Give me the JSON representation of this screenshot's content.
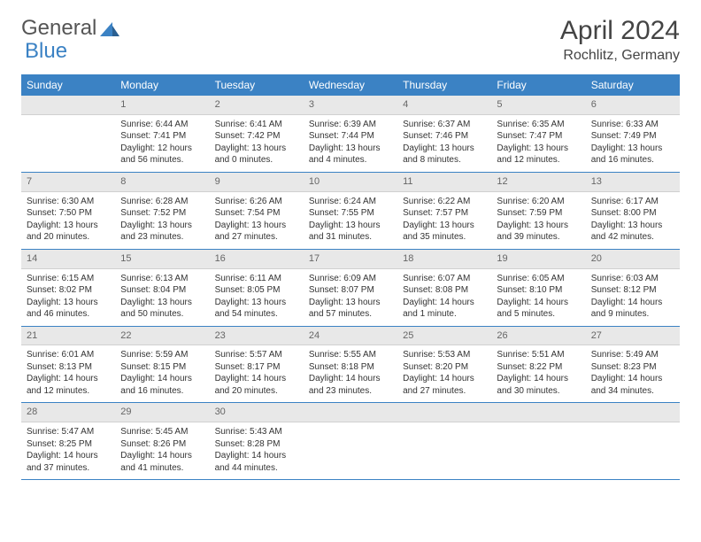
{
  "brand": {
    "part1": "General",
    "part2": "Blue"
  },
  "title": "April 2024",
  "location": "Rochlitz, Germany",
  "colors": {
    "accent": "#3b82c4",
    "header_bg": "#3b82c4",
    "header_fg": "#ffffff",
    "daynum_bg": "#e8e8e8",
    "text": "#333333"
  },
  "weekdays": [
    "Sunday",
    "Monday",
    "Tuesday",
    "Wednesday",
    "Thursday",
    "Friday",
    "Saturday"
  ],
  "weeks": [
    [
      {
        "n": "",
        "sr": "",
        "ss": "",
        "dl": ""
      },
      {
        "n": "1",
        "sr": "Sunrise: 6:44 AM",
        "ss": "Sunset: 7:41 PM",
        "dl": "Daylight: 12 hours and 56 minutes."
      },
      {
        "n": "2",
        "sr": "Sunrise: 6:41 AM",
        "ss": "Sunset: 7:42 PM",
        "dl": "Daylight: 13 hours and 0 minutes."
      },
      {
        "n": "3",
        "sr": "Sunrise: 6:39 AM",
        "ss": "Sunset: 7:44 PM",
        "dl": "Daylight: 13 hours and 4 minutes."
      },
      {
        "n": "4",
        "sr": "Sunrise: 6:37 AM",
        "ss": "Sunset: 7:46 PM",
        "dl": "Daylight: 13 hours and 8 minutes."
      },
      {
        "n": "5",
        "sr": "Sunrise: 6:35 AM",
        "ss": "Sunset: 7:47 PM",
        "dl": "Daylight: 13 hours and 12 minutes."
      },
      {
        "n": "6",
        "sr": "Sunrise: 6:33 AM",
        "ss": "Sunset: 7:49 PM",
        "dl": "Daylight: 13 hours and 16 minutes."
      }
    ],
    [
      {
        "n": "7",
        "sr": "Sunrise: 6:30 AM",
        "ss": "Sunset: 7:50 PM",
        "dl": "Daylight: 13 hours and 20 minutes."
      },
      {
        "n": "8",
        "sr": "Sunrise: 6:28 AM",
        "ss": "Sunset: 7:52 PM",
        "dl": "Daylight: 13 hours and 23 minutes."
      },
      {
        "n": "9",
        "sr": "Sunrise: 6:26 AM",
        "ss": "Sunset: 7:54 PM",
        "dl": "Daylight: 13 hours and 27 minutes."
      },
      {
        "n": "10",
        "sr": "Sunrise: 6:24 AM",
        "ss": "Sunset: 7:55 PM",
        "dl": "Daylight: 13 hours and 31 minutes."
      },
      {
        "n": "11",
        "sr": "Sunrise: 6:22 AM",
        "ss": "Sunset: 7:57 PM",
        "dl": "Daylight: 13 hours and 35 minutes."
      },
      {
        "n": "12",
        "sr": "Sunrise: 6:20 AM",
        "ss": "Sunset: 7:59 PM",
        "dl": "Daylight: 13 hours and 39 minutes."
      },
      {
        "n": "13",
        "sr": "Sunrise: 6:17 AM",
        "ss": "Sunset: 8:00 PM",
        "dl": "Daylight: 13 hours and 42 minutes."
      }
    ],
    [
      {
        "n": "14",
        "sr": "Sunrise: 6:15 AM",
        "ss": "Sunset: 8:02 PM",
        "dl": "Daylight: 13 hours and 46 minutes."
      },
      {
        "n": "15",
        "sr": "Sunrise: 6:13 AM",
        "ss": "Sunset: 8:04 PM",
        "dl": "Daylight: 13 hours and 50 minutes."
      },
      {
        "n": "16",
        "sr": "Sunrise: 6:11 AM",
        "ss": "Sunset: 8:05 PM",
        "dl": "Daylight: 13 hours and 54 minutes."
      },
      {
        "n": "17",
        "sr": "Sunrise: 6:09 AM",
        "ss": "Sunset: 8:07 PM",
        "dl": "Daylight: 13 hours and 57 minutes."
      },
      {
        "n": "18",
        "sr": "Sunrise: 6:07 AM",
        "ss": "Sunset: 8:08 PM",
        "dl": "Daylight: 14 hours and 1 minute."
      },
      {
        "n": "19",
        "sr": "Sunrise: 6:05 AM",
        "ss": "Sunset: 8:10 PM",
        "dl": "Daylight: 14 hours and 5 minutes."
      },
      {
        "n": "20",
        "sr": "Sunrise: 6:03 AM",
        "ss": "Sunset: 8:12 PM",
        "dl": "Daylight: 14 hours and 9 minutes."
      }
    ],
    [
      {
        "n": "21",
        "sr": "Sunrise: 6:01 AM",
        "ss": "Sunset: 8:13 PM",
        "dl": "Daylight: 14 hours and 12 minutes."
      },
      {
        "n": "22",
        "sr": "Sunrise: 5:59 AM",
        "ss": "Sunset: 8:15 PM",
        "dl": "Daylight: 14 hours and 16 minutes."
      },
      {
        "n": "23",
        "sr": "Sunrise: 5:57 AM",
        "ss": "Sunset: 8:17 PM",
        "dl": "Daylight: 14 hours and 20 minutes."
      },
      {
        "n": "24",
        "sr": "Sunrise: 5:55 AM",
        "ss": "Sunset: 8:18 PM",
        "dl": "Daylight: 14 hours and 23 minutes."
      },
      {
        "n": "25",
        "sr": "Sunrise: 5:53 AM",
        "ss": "Sunset: 8:20 PM",
        "dl": "Daylight: 14 hours and 27 minutes."
      },
      {
        "n": "26",
        "sr": "Sunrise: 5:51 AM",
        "ss": "Sunset: 8:22 PM",
        "dl": "Daylight: 14 hours and 30 minutes."
      },
      {
        "n": "27",
        "sr": "Sunrise: 5:49 AM",
        "ss": "Sunset: 8:23 PM",
        "dl": "Daylight: 14 hours and 34 minutes."
      }
    ],
    [
      {
        "n": "28",
        "sr": "Sunrise: 5:47 AM",
        "ss": "Sunset: 8:25 PM",
        "dl": "Daylight: 14 hours and 37 minutes."
      },
      {
        "n": "29",
        "sr": "Sunrise: 5:45 AM",
        "ss": "Sunset: 8:26 PM",
        "dl": "Daylight: 14 hours and 41 minutes."
      },
      {
        "n": "30",
        "sr": "Sunrise: 5:43 AM",
        "ss": "Sunset: 8:28 PM",
        "dl": "Daylight: 14 hours and 44 minutes."
      },
      {
        "n": "",
        "sr": "",
        "ss": "",
        "dl": ""
      },
      {
        "n": "",
        "sr": "",
        "ss": "",
        "dl": ""
      },
      {
        "n": "",
        "sr": "",
        "ss": "",
        "dl": ""
      },
      {
        "n": "",
        "sr": "",
        "ss": "",
        "dl": ""
      }
    ]
  ]
}
